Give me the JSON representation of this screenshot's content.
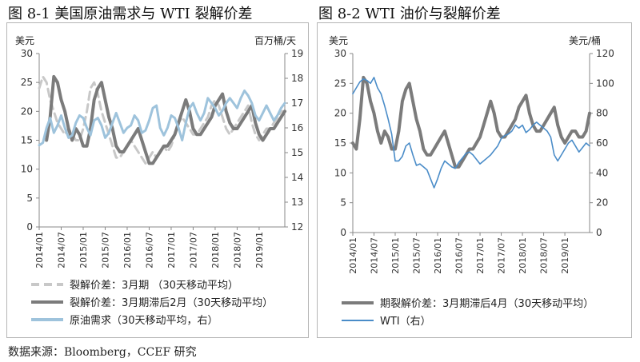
{
  "figure1": {
    "title": "图 8-1  美国原油需求与 WTI 裂解价差",
    "chart_data": {
      "type": "line",
      "left_axis_label": "美元",
      "right_axis_label": "百万桶/天",
      "y_left_ticks": [
        "0",
        "5",
        "10",
        "15",
        "20",
        "25",
        "30"
      ],
      "y_right_ticks": [
        "12",
        "13",
        "14",
        "15",
        "16",
        "17",
        "18",
        "19"
      ],
      "ylim_left": [
        0,
        30
      ],
      "ylim_right": [
        12,
        19
      ],
      "x_ticks": [
        "2014/01",
        "2014/07",
        "2015/01",
        "2015/07",
        "2016/01",
        "2016/07",
        "2017/01",
        "2017/07",
        "2018/01",
        "2018/07",
        "2019/01"
      ],
      "x_range": [
        "2014/01",
        "2019/07"
      ],
      "series": [
        {
          "name": "裂解价差：3月期（30天移动平均）",
          "axis": "left",
          "color": "#c8c8c8",
          "dash": true,
          "width": 3,
          "x": [
            0,
            1,
            2,
            3,
            4,
            5,
            6,
            7,
            8,
            9,
            10,
            11,
            12,
            13,
            14,
            15,
            16,
            17,
            18,
            19,
            20,
            21,
            22,
            23,
            24,
            25,
            26,
            27,
            28,
            29,
            30,
            31,
            32,
            33,
            34,
            35,
            36,
            37,
            38,
            39,
            40,
            41,
            42,
            43,
            44,
            45,
            46,
            47,
            48,
            49,
            50,
            51,
            52,
            53,
            54,
            55,
            56,
            57,
            58,
            59,
            60,
            61,
            62,
            63,
            64,
            65,
            66,
            67
          ],
          "values": [
            24,
            26,
            25,
            22,
            20,
            18,
            17,
            16,
            17,
            16,
            15,
            15,
            17,
            20,
            24,
            25,
            23,
            20,
            18,
            16,
            14,
            12,
            12,
            13,
            14,
            15,
            14,
            13,
            12,
            11,
            12,
            13,
            12,
            13,
            14,
            13,
            14,
            16,
            18,
            19,
            18,
            17,
            16,
            16,
            17,
            18,
            19,
            21,
            22,
            21,
            19,
            17,
            16,
            17,
            18,
            19,
            20,
            21,
            18,
            16,
            15,
            16,
            17,
            17,
            18,
            19,
            20,
            20
          ]
        },
        {
          "name": "裂解价差：3月期滞后2月（30天移动平均）",
          "axis": "left",
          "color": "#7b7b7b",
          "dash": false,
          "width": 4,
          "x": [
            2,
            3,
            4,
            5,
            6,
            7,
            8,
            9,
            10,
            11,
            12,
            13,
            14,
            15,
            16,
            17,
            18,
            19,
            20,
            21,
            22,
            23,
            24,
            25,
            26,
            27,
            28,
            29,
            30,
            31,
            32,
            33,
            34,
            35,
            36,
            37,
            38,
            39,
            40,
            41,
            42,
            43,
            44,
            45,
            46,
            47,
            48,
            49,
            50,
            51,
            52,
            53,
            54,
            55,
            56,
            57,
            58,
            59,
            60,
            61,
            62,
            63,
            64,
            65,
            66,
            67
          ],
          "values": [
            15,
            19,
            26,
            25,
            22,
            20,
            17,
            15,
            17,
            16,
            14,
            14,
            17,
            22,
            24,
            25,
            22,
            19,
            17,
            14,
            13,
            13,
            14,
            15,
            16,
            17,
            15,
            13,
            11,
            11,
            12,
            13,
            14,
            14,
            15,
            16,
            18,
            20,
            22,
            20,
            17,
            16,
            16,
            17,
            18,
            19,
            21,
            22,
            23,
            20,
            18,
            17,
            17,
            18,
            19,
            20,
            21,
            18,
            16,
            15,
            16,
            17,
            17,
            18,
            19,
            20
          ]
        },
        {
          "name": "原油需求（30天移动平均，右）",
          "axis": "right",
          "color": "#9ec3dc",
          "dash": false,
          "width": 3,
          "x": [
            0,
            1,
            2,
            3,
            4,
            5,
            6,
            7,
            8,
            9,
            10,
            11,
            12,
            13,
            14,
            15,
            16,
            17,
            18,
            19,
            20,
            21,
            22,
            23,
            24,
            25,
            26,
            27,
            28,
            29,
            30,
            31,
            32,
            33,
            34,
            35,
            36,
            37,
            38,
            39,
            40,
            41,
            42,
            43,
            44,
            45,
            46,
            47,
            48,
            49,
            50,
            51,
            52,
            53,
            54,
            55,
            56,
            57,
            58,
            59,
            60,
            61,
            62,
            63,
            64,
            65,
            66,
            67
          ],
          "values": [
            15.3,
            15.4,
            16.0,
            16.4,
            15.8,
            16.1,
            16.5,
            16.0,
            15.6,
            15.7,
            16.2,
            16.5,
            16.4,
            16.0,
            15.7,
            16.3,
            16.4,
            16.1,
            15.6,
            15.8,
            16.2,
            16.6,
            16.2,
            15.8,
            16.0,
            16.1,
            16.5,
            16.3,
            15.8,
            15.9,
            16.3,
            16.8,
            16.9,
            16.0,
            15.7,
            16.0,
            16.5,
            16.4,
            16.0,
            15.5,
            16.2,
            16.8,
            17.0,
            16.6,
            16.3,
            16.6,
            17.2,
            17.0,
            16.8,
            16.5,
            16.7,
            17.0,
            17.2,
            17.0,
            16.8,
            17.2,
            17.5,
            17.3,
            17.0,
            16.5,
            16.3,
            16.6,
            16.9,
            16.6,
            16.3,
            16.5,
            16.8,
            17.0
          ]
        }
      ]
    },
    "legend": [
      {
        "label": "裂解价差：3月期          （30天移动平均）",
        "color": "#c8c8c8",
        "dash": true
      },
      {
        "label": "裂解价差：3月期滞后2月（30天移动平均）",
        "color": "#7b7b7b",
        "dash": false
      },
      {
        "label": "原油需求（30天移动平均，右）",
        "color": "#9ec3dc",
        "dash": false
      }
    ]
  },
  "figure2": {
    "title": "图 8-2  WTI 油价与裂解价差",
    "chart_data": {
      "type": "line",
      "left_axis_label": "美元",
      "right_axis_label": "美元/桶",
      "y_left_ticks": [
        "0",
        "5",
        "10",
        "15",
        "20",
        "25",
        "30"
      ],
      "y_right_ticks": [
        "0",
        "20",
        "40",
        "60",
        "80",
        "100",
        "120"
      ],
      "ylim_left": [
        0,
        30
      ],
      "ylim_right": [
        0,
        120
      ],
      "x_ticks": [
        "2014/01",
        "2014/07",
        "2015/01",
        "2015/07",
        "2016/01",
        "2016/07",
        "2017/01",
        "2017/07",
        "2018/01",
        "2018/07",
        "2019/01"
      ],
      "x_range": [
        "2014/01",
        "2019/07"
      ],
      "series": [
        {
          "name": "期裂解价差：3月期滞后4月（30天移动平均）",
          "axis": "left",
          "color": "#7b7b7b",
          "dash": false,
          "width": 4,
          "x": [
            0,
            1,
            2,
            3,
            4,
            5,
            6,
            7,
            8,
            9,
            10,
            11,
            12,
            13,
            14,
            15,
            16,
            17,
            18,
            19,
            20,
            21,
            22,
            23,
            24,
            25,
            26,
            27,
            28,
            29,
            30,
            31,
            32,
            33,
            34,
            35,
            36,
            37,
            38,
            39,
            40,
            41,
            42,
            43,
            44,
            45,
            46,
            47,
            48,
            49,
            50,
            51,
            52,
            53,
            54,
            55,
            56,
            57,
            58,
            59,
            60,
            61,
            62,
            63,
            64,
            65,
            66,
            67
          ],
          "values": [
            15,
            14,
            19,
            26,
            25,
            22,
            20,
            17,
            15,
            17,
            16,
            14,
            14,
            17,
            22,
            24,
            25,
            22,
            19,
            17,
            14,
            13,
            13,
            14,
            15,
            16,
            17,
            15,
            13,
            11,
            11,
            12,
            13,
            14,
            14,
            15,
            16,
            18,
            20,
            22,
            20,
            17,
            16,
            16,
            17,
            18,
            19,
            21,
            22,
            23,
            20,
            18,
            17,
            17,
            18,
            19,
            20,
            21,
            18,
            16,
            15,
            16,
            17,
            17,
            16,
            16,
            17,
            20
          ]
        },
        {
          "name": "WTI（右）",
          "axis": "right",
          "color": "#4a8cc8",
          "dash": false,
          "width": 1.6,
          "x": [
            0,
            1,
            2,
            3,
            4,
            5,
            6,
            7,
            8,
            9,
            10,
            11,
            12,
            13,
            14,
            15,
            16,
            17,
            18,
            19,
            20,
            21,
            22,
            23,
            24,
            25,
            26,
            27,
            28,
            29,
            30,
            31,
            32,
            33,
            34,
            35,
            36,
            37,
            38,
            39,
            40,
            41,
            42,
            43,
            44,
            45,
            46,
            47,
            48,
            49,
            50,
            51,
            52,
            53,
            54,
            55,
            56,
            57,
            58,
            59,
            60,
            61,
            62,
            63,
            64,
            65,
            66,
            67
          ],
          "values": [
            93,
            97,
            101,
            103,
            102,
            100,
            104,
            97,
            93,
            85,
            76,
            66,
            48,
            48,
            51,
            58,
            60,
            52,
            45,
            46,
            44,
            42,
            36,
            30,
            36,
            43,
            48,
            46,
            44,
            43,
            47,
            50,
            53,
            54,
            52,
            49,
            46,
            48,
            50,
            52,
            55,
            58,
            63,
            65,
            66,
            68,
            72,
            70,
            72,
            67,
            69,
            72,
            74,
            72,
            70,
            68,
            64,
            52,
            48,
            52,
            56,
            60,
            62,
            58,
            54,
            57,
            60,
            58
          ]
        }
      ]
    },
    "legend": [
      {
        "label": "期裂解价差：3月期滞后4月（30天移动平均）",
        "color": "#7b7b7b",
        "dash": false
      },
      {
        "label": "WTI（右）",
        "color": "#4a8cc8",
        "dash": false
      }
    ]
  },
  "source": "数据来源：Bloomberg，CCEF 研究"
}
